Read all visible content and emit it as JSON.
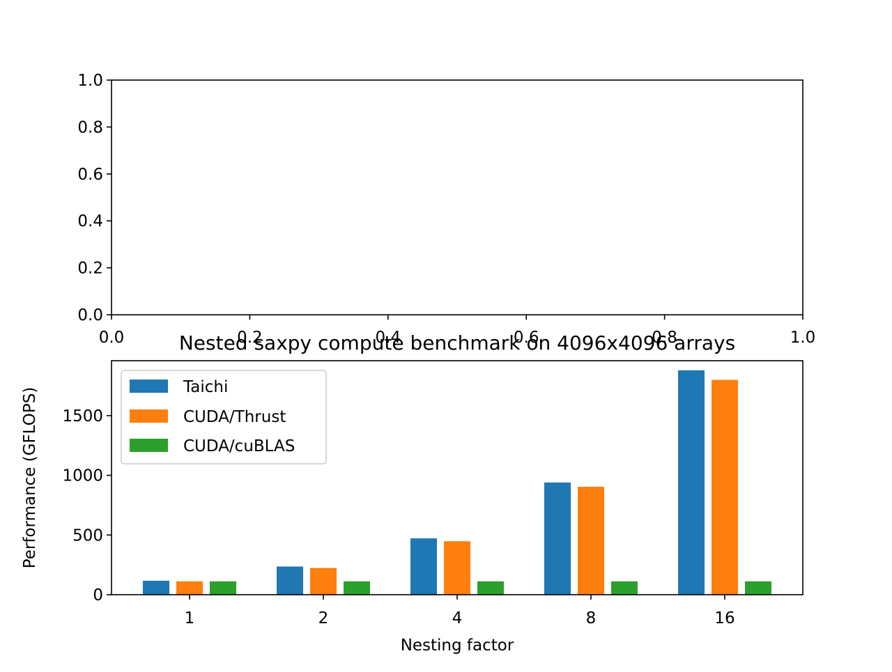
{
  "colors": {
    "taichi": "#1f77b4",
    "cuda_thrust": "#ff7f0e",
    "cuda_cublas": "#2ca02c",
    "axes": "#000000",
    "legend_border": "#cccccc"
  },
  "chart_data": [
    {
      "type": "empty",
      "title": "",
      "xlabel": "",
      "ylabel": "",
      "xlim": [
        0,
        1
      ],
      "ylim": [
        0,
        1
      ],
      "xticks": [
        "0.0",
        "0.2",
        "0.4",
        "0.6",
        "0.8",
        "1.0"
      ],
      "yticks": [
        "0.0",
        "0.2",
        "0.4",
        "0.6",
        "0.8",
        "1.0"
      ],
      "grid": false
    },
    {
      "type": "bar",
      "title": "Nested saxpy compute benchmark on 4096x4096 arrays",
      "xlabel": "Nesting factor",
      "ylabel": "Performance (GFLOPS)",
      "categories": [
        "1",
        "2",
        "4",
        "8",
        "16"
      ],
      "ylim": [
        0,
        1960
      ],
      "yticks": [
        "0",
        "500",
        "1000",
        "1500"
      ],
      "grid": false,
      "legend_position": "upper-left",
      "series": [
        {
          "name": "Taichi",
          "color_key": "taichi",
          "values": [
            117,
            236,
            472,
            940,
            1880
          ]
        },
        {
          "name": "CUDA/Thrust",
          "color_key": "cuda_thrust",
          "values": [
            112,
            224,
            448,
            904,
            1800
          ]
        },
        {
          "name": "CUDA/cuBLAS",
          "color_key": "cuda_cublas",
          "values": [
            112,
            112,
            112,
            112,
            112
          ]
        }
      ]
    }
  ]
}
